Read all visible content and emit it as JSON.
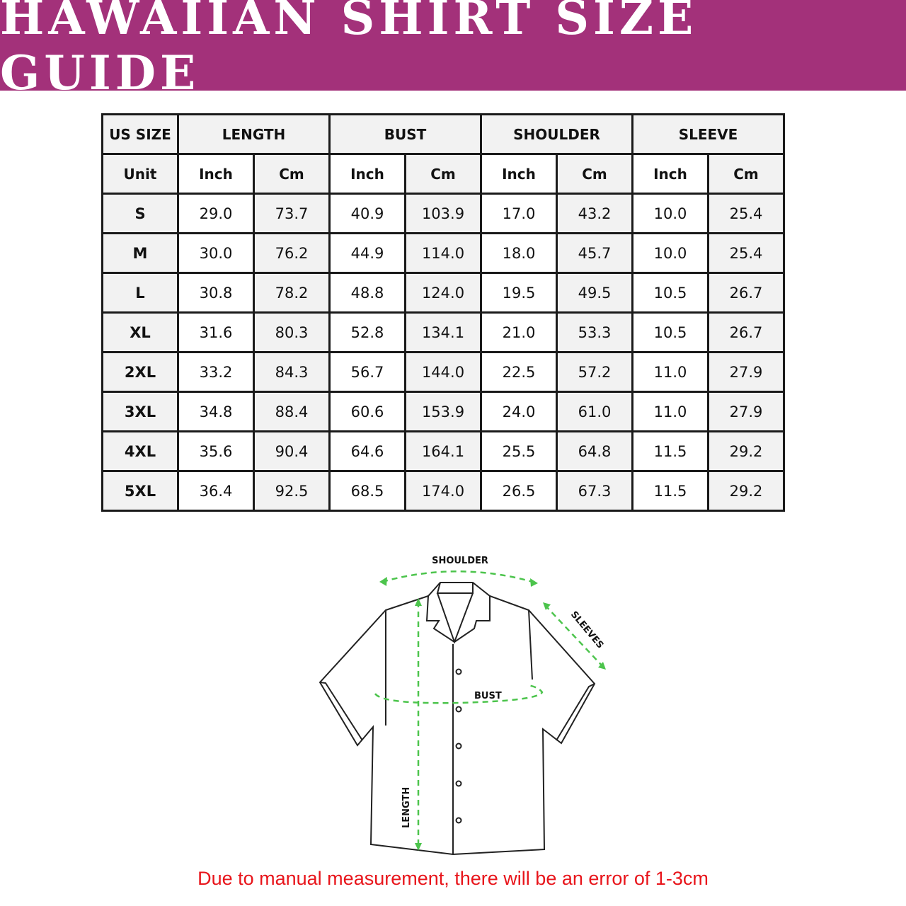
{
  "title": "HAWAIIAN SHIRT SIZE GUIDE",
  "colors": {
    "banner": "#a3317a",
    "measure_line": "#4cc44c",
    "note": "#e8151b"
  },
  "table": {
    "group_headers": [
      "US SIZE",
      "LENGTH",
      "BUST",
      "SHOULDER",
      "SLEEVE"
    ],
    "unit_row": [
      "Unit",
      "Inch",
      "Cm",
      "Inch",
      "Cm",
      "Inch",
      "Cm",
      "Inch",
      "Cm"
    ],
    "rows": [
      [
        "S",
        "29.0",
        "73.7",
        "40.9",
        "103.9",
        "17.0",
        "43.2",
        "10.0",
        "25.4"
      ],
      [
        "M",
        "30.0",
        "76.2",
        "44.9",
        "114.0",
        "18.0",
        "45.7",
        "10.0",
        "25.4"
      ],
      [
        "L",
        "30.8",
        "78.2",
        "48.8",
        "124.0",
        "19.5",
        "49.5",
        "10.5",
        "26.7"
      ],
      [
        "XL",
        "31.6",
        "80.3",
        "52.8",
        "134.1",
        "21.0",
        "53.3",
        "10.5",
        "26.7"
      ],
      [
        "2XL",
        "33.2",
        "84.3",
        "56.7",
        "144.0",
        "22.5",
        "57.2",
        "11.0",
        "27.9"
      ],
      [
        "3XL",
        "34.8",
        "88.4",
        "60.6",
        "153.9",
        "24.0",
        "61.0",
        "11.0",
        "27.9"
      ],
      [
        "4XL",
        "35.6",
        "90.4",
        "64.6",
        "164.1",
        "25.5",
        "64.8",
        "11.5",
        "29.2"
      ],
      [
        "5XL",
        "36.4",
        "92.5",
        "68.5",
        "174.0",
        "26.5",
        "67.3",
        "11.5",
        "29.2"
      ]
    ]
  },
  "diagram": {
    "shoulder": "SHOULDER",
    "sleeves": "SLEEVES",
    "bust": "BUST",
    "length": "LENGTH"
  },
  "note": "Due to manual measurement, there will be an error of 1-3cm"
}
